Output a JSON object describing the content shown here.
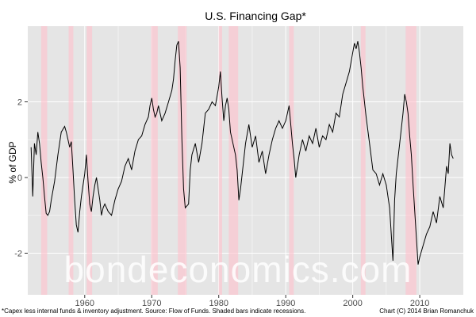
{
  "chart_data": {
    "type": "line",
    "title": "U.S. Financing Gap*",
    "xlabel": "",
    "ylabel": "% of GDP",
    "xlim": [
      1951.5,
      2016.5
    ],
    "ylim": [
      -3.1,
      4.0
    ],
    "x_ticks": [
      1960,
      1970,
      1980,
      1990,
      2000,
      2010
    ],
    "x_tick_labels": [
      "1960",
      "1970",
      "1980",
      "1990",
      "2000",
      "2010"
    ],
    "y_ticks": [
      -2,
      0,
      2
    ],
    "y_tick_labels": [
      "-2",
      "0",
      "2"
    ],
    "grid": true,
    "legend": "none",
    "colors": {
      "panel": "#e5e5e5",
      "grid": "#ffffff",
      "line": "#000000",
      "recession": "#ffc0cb"
    },
    "recessions": [
      [
        1953.5,
        1954.4
      ],
      [
        1957.6,
        1958.3
      ],
      [
        1960.3,
        1961.1
      ],
      [
        1969.9,
        1970.9
      ],
      [
        1973.9,
        1975.2
      ],
      [
        1980.0,
        1980.5
      ],
      [
        1981.5,
        1982.9
      ],
      [
        1990.5,
        1991.2
      ],
      [
        2001.2,
        2001.9
      ],
      [
        2007.9,
        2009.5
      ]
    ],
    "series": [
      {
        "points": [
          [
            1952.0,
            0.8
          ],
          [
            1952.25,
            -0.5
          ],
          [
            1952.5,
            0.9
          ],
          [
            1952.75,
            0.6
          ],
          [
            1953.0,
            1.2
          ],
          [
            1953.25,
            0.9
          ],
          [
            1953.5,
            0.4
          ],
          [
            1953.75,
            0.0
          ],
          [
            1954.0,
            -0.5
          ],
          [
            1954.25,
            -0.95
          ],
          [
            1954.5,
            -1.0
          ],
          [
            1954.75,
            -0.9
          ],
          [
            1955.0,
            -0.6
          ],
          [
            1955.5,
            -0.1
          ],
          [
            1956.0,
            0.6
          ],
          [
            1956.5,
            1.2
          ],
          [
            1957.0,
            1.35
          ],
          [
            1957.25,
            1.2
          ],
          [
            1957.5,
            1.0
          ],
          [
            1957.75,
            0.8
          ],
          [
            1958.0,
            0.95
          ],
          [
            1958.25,
            0.2
          ],
          [
            1958.5,
            -0.6
          ],
          [
            1958.75,
            -1.25
          ],
          [
            1959.0,
            -1.45
          ],
          [
            1959.25,
            -0.9
          ],
          [
            1959.5,
            -0.5
          ],
          [
            1959.75,
            -0.2
          ],
          [
            1960.0,
            0.1
          ],
          [
            1960.25,
            0.6
          ],
          [
            1960.5,
            -0.1
          ],
          [
            1960.75,
            -0.7
          ],
          [
            1961.0,
            -0.9
          ],
          [
            1961.25,
            -0.5
          ],
          [
            1961.5,
            -0.2
          ],
          [
            1961.75,
            0.0
          ],
          [
            1962.0,
            -0.3
          ],
          [
            1962.25,
            -0.6
          ],
          [
            1962.5,
            -1.0
          ],
          [
            1962.75,
            -0.8
          ],
          [
            1963.0,
            -0.7
          ],
          [
            1963.5,
            -0.9
          ],
          [
            1964.0,
            -1.0
          ],
          [
            1964.5,
            -0.6
          ],
          [
            1965.0,
            -0.3
          ],
          [
            1965.5,
            -0.1
          ],
          [
            1966.0,
            0.3
          ],
          [
            1966.5,
            0.5
          ],
          [
            1967.0,
            0.2
          ],
          [
            1967.5,
            0.7
          ],
          [
            1968.0,
            1.0
          ],
          [
            1968.5,
            1.1
          ],
          [
            1969.0,
            1.4
          ],
          [
            1969.5,
            1.6
          ],
          [
            1969.75,
            1.9
          ],
          [
            1970.0,
            2.1
          ],
          [
            1970.25,
            1.8
          ],
          [
            1970.5,
            1.6
          ],
          [
            1970.75,
            1.7
          ],
          [
            1971.0,
            1.9
          ],
          [
            1971.5,
            1.5
          ],
          [
            1972.0,
            1.7
          ],
          [
            1972.5,
            2.0
          ],
          [
            1973.0,
            2.3
          ],
          [
            1973.25,
            2.6
          ],
          [
            1973.5,
            3.1
          ],
          [
            1973.75,
            3.5
          ],
          [
            1974.0,
            3.6
          ],
          [
            1974.25,
            2.9
          ],
          [
            1974.5,
            1.0
          ],
          [
            1974.75,
            -0.3
          ],
          [
            1975.0,
            -0.8
          ],
          [
            1975.5,
            -0.7
          ],
          [
            1975.75,
            0.2
          ],
          [
            1976.0,
            0.6
          ],
          [
            1976.5,
            0.9
          ],
          [
            1977.0,
            0.4
          ],
          [
            1977.5,
            0.9
          ],
          [
            1978.0,
            1.7
          ],
          [
            1978.5,
            1.8
          ],
          [
            1979.0,
            2.0
          ],
          [
            1979.5,
            1.9
          ],
          [
            1980.0,
            2.4
          ],
          [
            1980.25,
            2.8
          ],
          [
            1980.5,
            2.1
          ],
          [
            1980.75,
            1.5
          ],
          [
            1981.0,
            1.9
          ],
          [
            1981.25,
            2.1
          ],
          [
            1981.5,
            1.8
          ],
          [
            1981.75,
            1.2
          ],
          [
            1982.0,
            1.0
          ],
          [
            1982.5,
            0.6
          ],
          [
            1982.75,
            0.2
          ],
          [
            1983.0,
            -0.6
          ],
          [
            1983.25,
            -0.3
          ],
          [
            1983.5,
            0.1
          ],
          [
            1984.0,
            0.9
          ],
          [
            1984.5,
            1.4
          ],
          [
            1985.0,
            0.8
          ],
          [
            1985.5,
            1.1
          ],
          [
            1986.0,
            0.4
          ],
          [
            1986.5,
            0.7
          ],
          [
            1987.0,
            0.1
          ],
          [
            1987.5,
            0.6
          ],
          [
            1988.0,
            1.0
          ],
          [
            1988.5,
            1.3
          ],
          [
            1989.0,
            1.5
          ],
          [
            1989.5,
            1.3
          ],
          [
            1990.0,
            1.5
          ],
          [
            1990.5,
            1.9
          ],
          [
            1990.75,
            1.4
          ],
          [
            1991.0,
            0.9
          ],
          [
            1991.25,
            0.5
          ],
          [
            1991.5,
            0.0
          ],
          [
            1992.0,
            0.6
          ],
          [
            1992.5,
            1.0
          ],
          [
            1993.0,
            0.7
          ],
          [
            1993.5,
            1.1
          ],
          [
            1994.0,
            0.9
          ],
          [
            1994.5,
            1.3
          ],
          [
            1995.0,
            0.8
          ],
          [
            1995.5,
            1.1
          ],
          [
            1996.0,
            1.0
          ],
          [
            1996.5,
            1.4
          ],
          [
            1997.0,
            1.2
          ],
          [
            1997.5,
            1.7
          ],
          [
            1998.0,
            1.6
          ],
          [
            1998.5,
            2.2
          ],
          [
            1999.0,
            2.5
          ],
          [
            1999.5,
            2.8
          ],
          [
            2000.0,
            3.3
          ],
          [
            2000.25,
            3.55
          ],
          [
            2000.5,
            3.4
          ],
          [
            2000.75,
            3.6
          ],
          [
            2001.0,
            3.3
          ],
          [
            2001.25,
            2.9
          ],
          [
            2001.5,
            2.4
          ],
          [
            2001.75,
            2.0
          ],
          [
            2002.0,
            1.6
          ],
          [
            2002.5,
            0.9
          ],
          [
            2003.0,
            0.2
          ],
          [
            2003.5,
            0.1
          ],
          [
            2004.0,
            -0.2
          ],
          [
            2004.5,
            0.1
          ],
          [
            2005.0,
            -0.2
          ],
          [
            2005.5,
            -0.8
          ],
          [
            2006.0,
            -2.2
          ],
          [
            2006.25,
            -0.6
          ],
          [
            2006.5,
            0.1
          ],
          [
            2007.0,
            0.9
          ],
          [
            2007.5,
            1.7
          ],
          [
            2007.75,
            2.2
          ],
          [
            2008.0,
            2.0
          ],
          [
            2008.25,
            1.7
          ],
          [
            2008.5,
            1.1
          ],
          [
            2008.75,
            0.6
          ],
          [
            2009.0,
            -0.2
          ],
          [
            2009.25,
            -0.9
          ],
          [
            2009.5,
            -1.6
          ],
          [
            2009.75,
            -2.3
          ],
          [
            2010.0,
            -2.1
          ],
          [
            2010.5,
            -1.8
          ],
          [
            2011.0,
            -1.5
          ],
          [
            2011.5,
            -1.3
          ],
          [
            2012.0,
            -0.9
          ],
          [
            2012.5,
            -1.2
          ],
          [
            2013.0,
            -0.5
          ],
          [
            2013.5,
            -0.8
          ],
          [
            2014.0,
            0.3
          ],
          [
            2014.25,
            0.1
          ],
          [
            2014.5,
            0.9
          ],
          [
            2014.75,
            0.6
          ],
          [
            2015.0,
            0.5
          ]
        ]
      }
    ]
  },
  "footer": {
    "note": "*Capex less internal funds & inventory adjustment. Source: Flow of Funds. Shaded bars indicate recessions.",
    "credit": "Chart (C) 2014 Brian Romanchuk"
  },
  "watermark": "bondeconomics.com"
}
